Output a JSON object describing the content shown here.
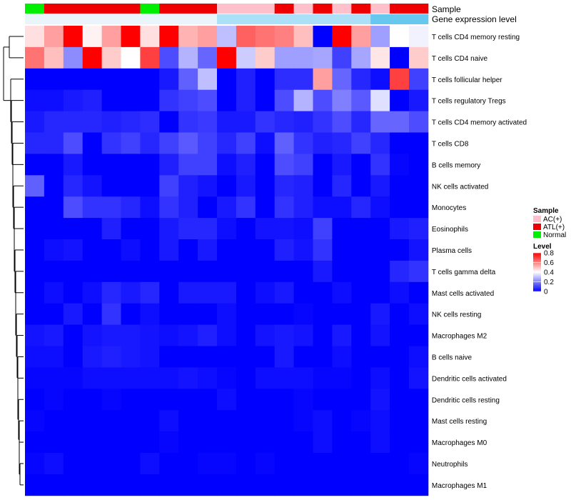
{
  "chart_data": {
    "type": "heatmap",
    "annotation_labels": [
      "Sample",
      "Gene expression level"
    ],
    "sample_groups": [
      "Normal",
      "ATL(+)",
      "ATL(+)",
      "ATL(+)",
      "ATL(+)",
      "ATL(+)",
      "Normal",
      "ATL(+)",
      "ATL(+)",
      "ATL(+)",
      "AC(+)",
      "AC(+)",
      "AC(+)",
      "ATL(+)",
      "AC(+)",
      "ATL(+)",
      "AC(+)",
      "ATL(+)",
      "AC(+)",
      "ATL(+)",
      "ATL(+)"
    ],
    "expression_levels": [
      0.05,
      0.05,
      0.05,
      0.05,
      0.05,
      0.05,
      0.05,
      0.05,
      0.05,
      0.05,
      0.45,
      0.45,
      0.45,
      0.45,
      0.45,
      0.45,
      0.45,
      0.45,
      0.9,
      0.9,
      0.9
    ],
    "rows": [
      "T cells CD4 memory resting",
      "T cells CD4 naive",
      "T cells follicular helper",
      "T cells regulatory  Tregs",
      "T cells CD4 memory activated",
      "T cells CD8",
      "B cells memory",
      "NK cells activated",
      "Monocytes",
      "Eosinophils",
      "Plasma cells",
      "T cells gamma delta",
      "Mast cells activated",
      "NK cells resting",
      "Macrophages M2",
      "B cells naive",
      "Dendritic cells activated",
      "Dendritic cells resting",
      "Mast cells resting",
      "Macrophages M0",
      "Neutrophils",
      "Macrophages M1"
    ],
    "values": [
      [
        0.45,
        0.55,
        0.8,
        0.42,
        0.55,
        0.8,
        0.45,
        0.8,
        0.52,
        0.55,
        0.3,
        0.65,
        0.62,
        0.6,
        0.5,
        0.0,
        0.8,
        0.55,
        0.25,
        0.4,
        0.38
      ],
      [
        0.62,
        0.5,
        0.22,
        0.8,
        0.48,
        0.4,
        0.7,
        0.12,
        0.28,
        0.16,
        0.8,
        0.32,
        0.48,
        0.25,
        0.25,
        0.26,
        0.1,
        0.26,
        0.44,
        0.0,
        0.48
      ],
      [
        0.0,
        0.0,
        0.0,
        0.0,
        0.0,
        0.0,
        0.0,
        0.04,
        0.15,
        0.3,
        0.0,
        0.05,
        0.0,
        0.07,
        0.07,
        0.55,
        0.16,
        0.06,
        0.02,
        0.7,
        0.1
      ],
      [
        0.02,
        0.02,
        0.04,
        0.05,
        0.0,
        0.0,
        0.0,
        0.08,
        0.1,
        0.12,
        0.0,
        0.05,
        0.0,
        0.12,
        0.28,
        0.12,
        0.2,
        0.14,
        0.35,
        0.0,
        0.04
      ],
      [
        0.04,
        0.06,
        0.06,
        0.06,
        0.05,
        0.06,
        0.07,
        0.0,
        0.08,
        0.09,
        0.04,
        0.04,
        0.08,
        0.06,
        0.05,
        0.08,
        0.12,
        0.06,
        0.16,
        0.16,
        0.12
      ],
      [
        0.06,
        0.06,
        0.12,
        0.0,
        0.08,
        0.1,
        0.06,
        0.1,
        0.14,
        0.1,
        0.06,
        0.1,
        0.02,
        0.15,
        0.08,
        0.05,
        0.06,
        0.1,
        0.06,
        0.0,
        0.0
      ],
      [
        0.0,
        0.0,
        0.04,
        0.0,
        0.0,
        0.0,
        0.0,
        0.05,
        0.1,
        0.1,
        0.02,
        0.05,
        0.0,
        0.12,
        0.1,
        0.0,
        0.04,
        0.0,
        0.08,
        0.01,
        0.0
      ],
      [
        0.15,
        0.0,
        0.06,
        0.03,
        0.0,
        0.0,
        0.0,
        0.1,
        0.05,
        0.03,
        0.0,
        0.04,
        0.0,
        0.06,
        0.05,
        0.0,
        0.06,
        0.0,
        0.04,
        0.0,
        0.0
      ],
      [
        0.0,
        0.0,
        0.12,
        0.08,
        0.08,
        0.06,
        0.02,
        0.08,
        0.05,
        0.0,
        0.04,
        0.08,
        0.0,
        0.08,
        0.05,
        0.02,
        0.02,
        0.06,
        0.02,
        0.0,
        0.0
      ],
      [
        0.0,
        0.0,
        0.0,
        0.0,
        0.05,
        0.0,
        0.0,
        0.04,
        0.06,
        0.06,
        0.02,
        0.0,
        0.03,
        0.03,
        0.02,
        0.1,
        0.0,
        0.0,
        0.0,
        0.04,
        0.05
      ],
      [
        0.0,
        0.02,
        0.03,
        0.0,
        0.0,
        0.02,
        0.0,
        0.04,
        0.0,
        0.04,
        0.0,
        0.0,
        0.0,
        0.05,
        0.03,
        0.08,
        0.0,
        0.0,
        0.0,
        0.0,
        0.03
      ],
      [
        0.0,
        0.0,
        0.0,
        0.0,
        0.0,
        0.0,
        0.0,
        0.0,
        0.0,
        0.0,
        0.0,
        0.0,
        0.0,
        0.0,
        0.0,
        0.04,
        0.0,
        0.0,
        0.0,
        0.06,
        0.08
      ],
      [
        0.0,
        0.02,
        0.0,
        0.02,
        0.06,
        0.04,
        0.06,
        0.0,
        0.04,
        0.04,
        0.04,
        0.0,
        0.02,
        0.04,
        0.0,
        0.0,
        0.02,
        0.0,
        0.0,
        0.02,
        0.0
      ],
      [
        0.0,
        0.0,
        0.04,
        0.0,
        0.08,
        0.0,
        0.02,
        0.0,
        0.0,
        0.0,
        0.02,
        0.0,
        0.0,
        0.0,
        0.01,
        0.0,
        0.0,
        0.0,
        0.04,
        0.0,
        0.02
      ],
      [
        0.03,
        0.04,
        0.0,
        0.03,
        0.04,
        0.04,
        0.03,
        0.02,
        0.03,
        0.05,
        0.02,
        0.0,
        0.03,
        0.04,
        0.03,
        0.0,
        0.04,
        0.0,
        0.03,
        0.0,
        0.0
      ],
      [
        0.02,
        0.02,
        0.0,
        0.04,
        0.05,
        0.04,
        0.03,
        0.0,
        0.0,
        0.0,
        0.0,
        0.0,
        0.0,
        0.04,
        0.0,
        0.0,
        0.02,
        0.0,
        0.0,
        0.0,
        0.02
      ],
      [
        0.01,
        0.01,
        0.01,
        0.02,
        0.02,
        0.02,
        0.02,
        0.02,
        0.03,
        0.02,
        0.01,
        0.0,
        0.02,
        0.02,
        0.02,
        0.01,
        0.01,
        0.0,
        0.02,
        0.0,
        0.03
      ],
      [
        0.0,
        0.01,
        0.0,
        0.0,
        0.01,
        0.0,
        0.0,
        0.0,
        0.0,
        0.0,
        0.02,
        0.0,
        0.0,
        0.0,
        0.01,
        0.0,
        0.0,
        0.0,
        0.03,
        0.0,
        0.0
      ],
      [
        0.01,
        0.0,
        0.0,
        0.0,
        0.0,
        0.0,
        0.0,
        0.02,
        0.0,
        0.0,
        0.0,
        0.0,
        0.0,
        0.0,
        0.01,
        0.02,
        0.0,
        0.01,
        0.02,
        0.0,
        0.0
      ],
      [
        0.0,
        0.0,
        0.0,
        0.0,
        0.0,
        0.0,
        0.0,
        0.01,
        0.0,
        0.0,
        0.0,
        0.0,
        0.0,
        0.0,
        0.0,
        0.02,
        0.0,
        0.0,
        0.02,
        0.0,
        0.0
      ],
      [
        0.01,
        0.02,
        0.0,
        0.0,
        0.0,
        0.0,
        0.02,
        0.0,
        0.0,
        0.01,
        0.01,
        0.0,
        0.01,
        0.0,
        0.0,
        0.0,
        0.0,
        0.0,
        0.0,
        0.0,
        0.01
      ],
      [
        0.0,
        0.0,
        0.0,
        0.0,
        0.0,
        0.0,
        0.0,
        0.0,
        0.0,
        0.0,
        0.0,
        0.0,
        0.0,
        0.0,
        0.0,
        0.0,
        0.0,
        0.0,
        0.0,
        0.0,
        0.0
      ]
    ],
    "legend_sample": {
      "title": "Sample",
      "entries": [
        {
          "label": "AC(+)",
          "color": "#ffc0cb"
        },
        {
          "label": "ATL(+)",
          "color": "#ee0000"
        },
        {
          "label": "Normal",
          "color": "#00ee00"
        }
      ]
    },
    "legend_level": {
      "title": "Level",
      "ticks": [
        "0.8",
        "0.6",
        "0.4",
        "0.2",
        "0"
      ],
      "tick_values": [
        0.8,
        0.6,
        0.4,
        0.2,
        0
      ],
      "range": [
        0,
        0.8
      ]
    },
    "colors": {
      "low": "#0000ff",
      "mid": "#ffffff",
      "high": "#ff0000",
      "expr_low": "#f2f8fc",
      "expr_high": "#57c3ee",
      "dendrogram": "#000000"
    }
  }
}
